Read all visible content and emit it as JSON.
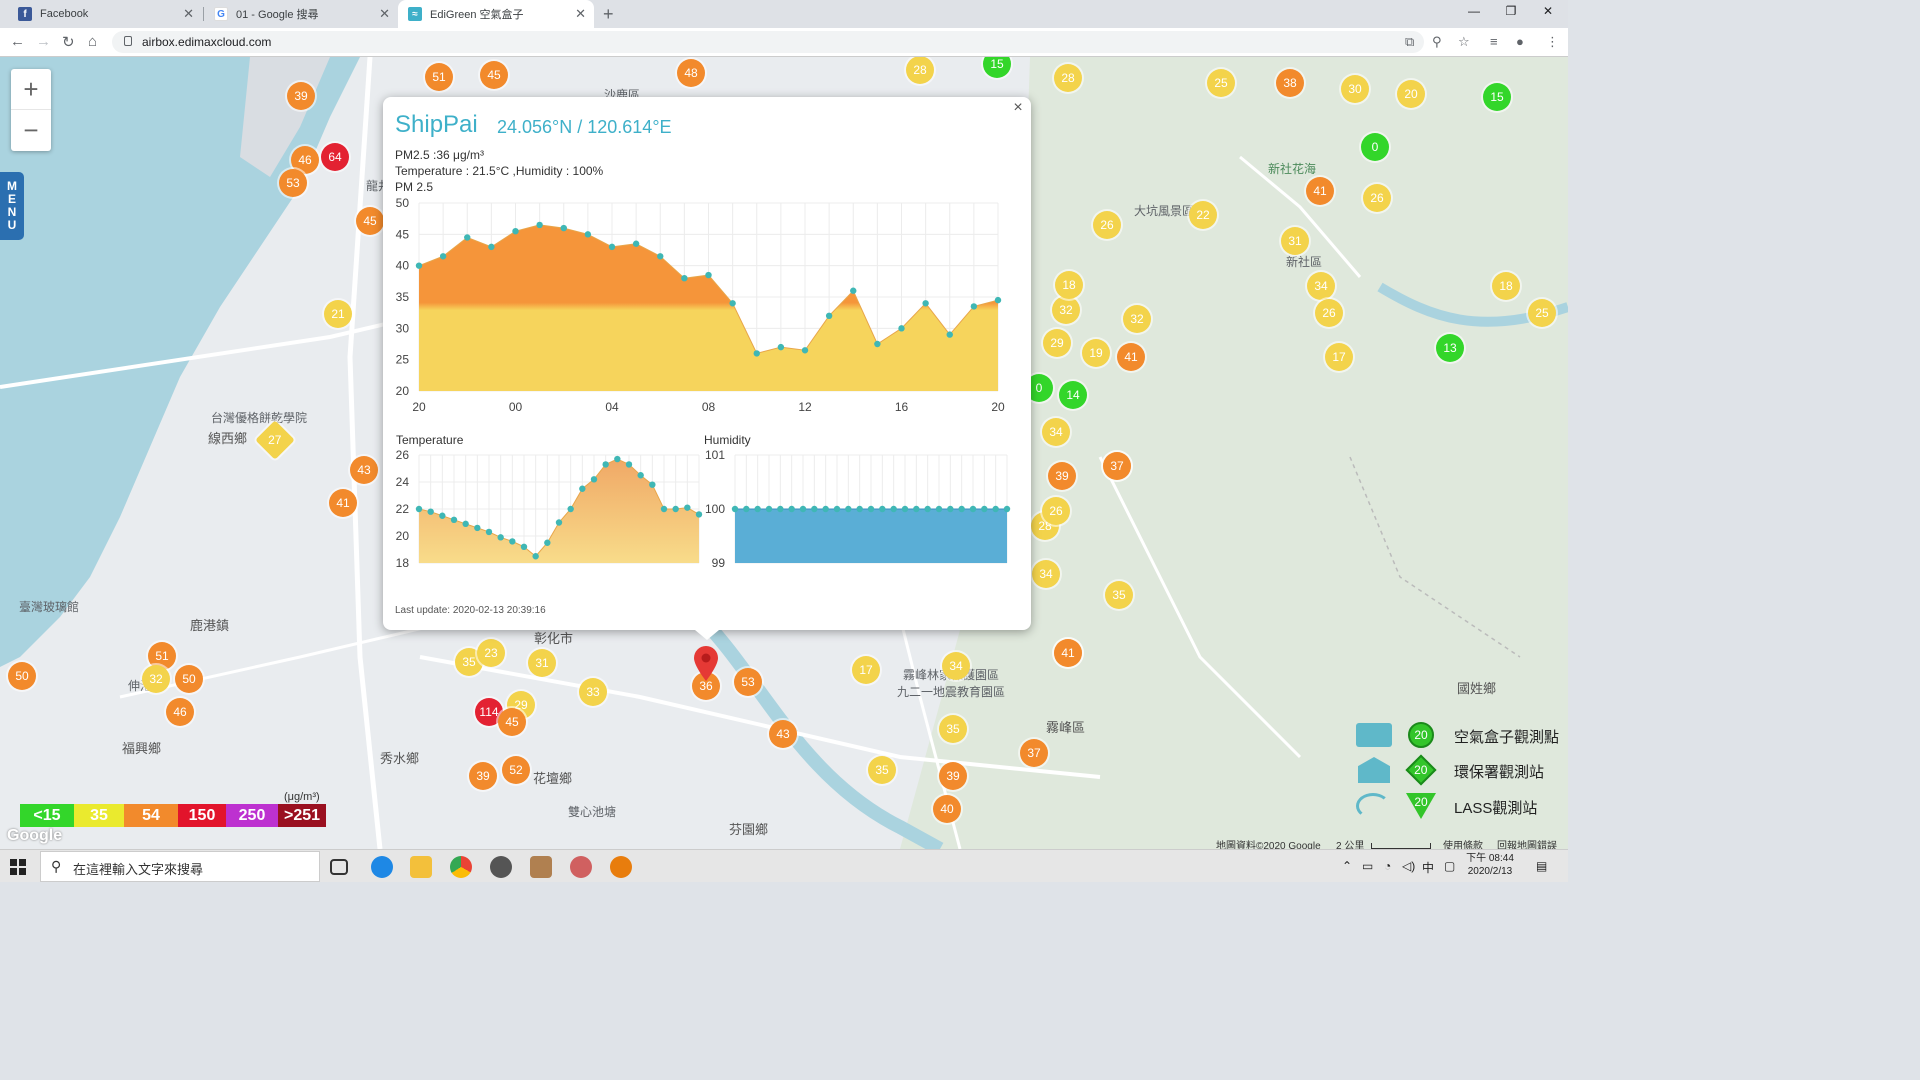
{
  "browser": {
    "tabs": [
      {
        "label": "Facebook",
        "icon": "facebook-icon"
      },
      {
        "label": "01 - Google 搜尋",
        "icon": "google-icon"
      },
      {
        "label": "EdiGreen 空氣盒子",
        "icon": "edigreen-icon"
      }
    ],
    "url": "airbox.edimaxcloud.com"
  },
  "map": {
    "menu_label": "MENU",
    "zoom_in": "+",
    "zoom_out": "−",
    "labels": [
      {
        "text": "沙鹿區"
      },
      {
        "text": "龍井"
      },
      {
        "text": "大坑風景區"
      },
      {
        "text": "新社花海"
      },
      {
        "text": "新社區"
      },
      {
        "text": "台灣優格餅乾學院"
      },
      {
        "text": "線西鄉"
      },
      {
        "text": "臺灣玻璃館"
      },
      {
        "text": "鹿港鎮"
      },
      {
        "text": "彰化市"
      },
      {
        "text": "福興鄉"
      },
      {
        "text": "秀水鄉"
      },
      {
        "text": "花壇鄉"
      },
      {
        "text": "雙心池塘"
      },
      {
        "text": "芬園鄉"
      },
      {
        "text": "霧峰林家保護園區"
      },
      {
        "text": "九二一地震教育園區"
      },
      {
        "text": "霧峰區"
      },
      {
        "text": "國姓鄉"
      },
      {
        "text": "伸港鄉"
      }
    ],
    "markers": [
      {
        "v": "39",
        "c": "orange"
      },
      {
        "v": "51",
        "c": "orange"
      },
      {
        "v": "45",
        "c": "orange"
      },
      {
        "v": "48",
        "c": "orange"
      },
      {
        "v": "46",
        "c": "orange"
      },
      {
        "v": "64",
        "c": "red"
      },
      {
        "v": "53",
        "c": "orange"
      },
      {
        "v": "45",
        "c": "orange"
      },
      {
        "v": "21",
        "c": "yellow"
      },
      {
        "v": "27",
        "c": "yellow"
      },
      {
        "v": "43",
        "c": "orange"
      },
      {
        "v": "41",
        "c": "orange"
      },
      {
        "v": "50",
        "c": "orange"
      },
      {
        "v": "51",
        "c": "orange"
      },
      {
        "v": "32",
        "c": "yellow"
      },
      {
        "v": "50",
        "c": "orange"
      },
      {
        "v": "46",
        "c": "orange"
      },
      {
        "v": "35",
        "c": "yellow"
      },
      {
        "v": "23",
        "c": "yellow"
      },
      {
        "v": "31",
        "c": "yellow"
      },
      {
        "v": "33",
        "c": "yellow"
      },
      {
        "v": "114",
        "c": "red"
      },
      {
        "v": "29",
        "c": "yellow"
      },
      {
        "v": "39",
        "c": "orange"
      },
      {
        "v": "52",
        "c": "orange"
      },
      {
        "v": "36",
        "c": "orange"
      },
      {
        "v": "53",
        "c": "orange"
      },
      {
        "v": "43",
        "c": "orange"
      },
      {
        "v": "17",
        "c": "yellow"
      },
      {
        "v": "34",
        "c": "yellow"
      },
      {
        "v": "35",
        "c": "yellow"
      },
      {
        "v": "35",
        "c": "yellow"
      },
      {
        "v": "39",
        "c": "orange"
      },
      {
        "v": "40",
        "c": "orange"
      },
      {
        "v": "37",
        "c": "orange"
      },
      {
        "v": "41",
        "c": "orange"
      },
      {
        "v": "35",
        "c": "yellow"
      },
      {
        "v": "34",
        "c": "yellow"
      },
      {
        "v": "28",
        "c": "yellow"
      },
      {
        "v": "26",
        "c": "yellow"
      },
      {
        "v": "39",
        "c": "orange"
      },
      {
        "v": "37",
        "c": "orange"
      },
      {
        "v": "34",
        "c": "yellow"
      },
      {
        "v": "14",
        "c": "green"
      },
      {
        "v": "19",
        "c": "yellow"
      },
      {
        "v": "41",
        "c": "orange"
      },
      {
        "v": "32",
        "c": "yellow"
      },
      {
        "v": "29",
        "c": "yellow"
      },
      {
        "v": "32",
        "c": "yellow"
      },
      {
        "v": "18",
        "c": "yellow"
      },
      {
        "v": "26",
        "c": "yellow"
      },
      {
        "v": "22",
        "c": "yellow"
      },
      {
        "v": "28",
        "c": "yellow"
      },
      {
        "v": "28",
        "c": "yellow"
      },
      {
        "v": "15",
        "c": "green"
      },
      {
        "v": "25",
        "c": "yellow"
      },
      {
        "v": "38",
        "c": "orange"
      },
      {
        "v": "30",
        "c": "yellow"
      },
      {
        "v": "20",
        "c": "yellow"
      },
      {
        "v": "15",
        "c": "green"
      },
      {
        "v": "0",
        "c": "green"
      },
      {
        "v": "41",
        "c": "orange"
      },
      {
        "v": "26",
        "c": "yellow"
      },
      {
        "v": "31",
        "c": "yellow"
      },
      {
        "v": "34",
        "c": "yellow"
      },
      {
        "v": "26",
        "c": "yellow"
      },
      {
        "v": "17",
        "c": "yellow"
      },
      {
        "v": "13",
        "c": "green"
      },
      {
        "v": "18",
        "c": "yellow"
      },
      {
        "v": "25",
        "c": "yellow"
      },
      {
        "v": "0",
        "c": "green"
      },
      {
        "v": "41",
        "c": "orange"
      },
      {
        "v": "37",
        "c": "orange"
      },
      {
        "v": "45",
        "c": "orange"
      }
    ]
  },
  "popup": {
    "close": "×",
    "station": "ShipPai",
    "coords": "24.056°N / 120.614°E",
    "pm25_line": "PM2.5 :36 μg/m³",
    "temp_line": "Temperature : 21.5°C ,Humidity : 100%",
    "chart_title": "PM 2.5",
    "temp_title": "Temperature",
    "hum_title": "Humidity",
    "last_update": "Last update: 2020-02-13 20:39:16"
  },
  "chart_data": [
    {
      "type": "area",
      "title": "PM 2.5",
      "x_ticks": [
        "20",
        "00",
        "04",
        "08",
        "12",
        "16",
        "20"
      ],
      "ylim": [
        20,
        50
      ],
      "y_ticks": [
        20,
        25,
        30,
        35,
        40,
        45,
        50
      ],
      "threshold": 33.5,
      "colors": {
        "above": "#f5953a",
        "below": "#f6d45c",
        "point": "#3fb7b5"
      },
      "values": [
        40,
        41.5,
        44.5,
        43,
        45.5,
        46.5,
        46,
        45,
        43,
        43.5,
        41.5,
        38,
        38.5,
        34,
        26,
        27,
        26.5,
        32,
        36,
        27.5,
        30,
        34,
        29,
        33.5,
        34.5
      ]
    },
    {
      "type": "area",
      "title": "Temperature",
      "ylim": [
        18,
        26
      ],
      "y_ticks": [
        18,
        20,
        22,
        24,
        26
      ],
      "colors": {
        "fill": "#f3b873",
        "point": "#3fb7b5"
      },
      "values": [
        22,
        21.8,
        21.5,
        21.2,
        20.9,
        20.6,
        20.3,
        19.9,
        19.6,
        19.2,
        18.5,
        19.5,
        21,
        22,
        23.5,
        24.2,
        25.3,
        25.7,
        25.3,
        24.5,
        23.8,
        22,
        22,
        22.1,
        21.6
      ]
    },
    {
      "type": "area",
      "title": "Humidity",
      "ylim": [
        99,
        101
      ],
      "y_ticks": [
        99,
        100,
        101
      ],
      "colors": {
        "fill": "#5aaed6",
        "point": "#3fb7b5"
      },
      "values": [
        100,
        100,
        100,
        100,
        100,
        100,
        100,
        100,
        100,
        100,
        100,
        100,
        100,
        100,
        100,
        100,
        100,
        100,
        100,
        100,
        100,
        100,
        100,
        100,
        100
      ]
    }
  ],
  "aqi_scale": {
    "unit": "(μg/m³)",
    "levels": [
      {
        "label": "<15",
        "color": "#33d62a"
      },
      {
        "label": "35",
        "color": "#eaea2e"
      },
      {
        "label": "54",
        "color": "#f28a2c"
      },
      {
        "label": "150",
        "color": "#e2142b"
      },
      {
        "label": "250",
        "color": "#bd31d0"
      },
      {
        "label": ">251",
        "color": "#9a1020"
      }
    ]
  },
  "type_legend": [
    {
      "label": "空氣盒子觀測點",
      "value": "20",
      "shape": "circle"
    },
    {
      "label": "環保署觀測站",
      "value": "20",
      "shape": "diamond"
    },
    {
      "label": "LASS觀測站",
      "value": "20",
      "shape": "triangle"
    }
  ],
  "attribution": {
    "data": "地圖資料©2020 Google",
    "scale": "2 公里",
    "terms": "使用條款",
    "report": "回報地圖錯誤"
  },
  "taskbar": {
    "search_placeholder": "在這裡輸入文字來搜尋",
    "time": "下午 08:44",
    "date": "2020/2/13",
    "ime": "中"
  }
}
